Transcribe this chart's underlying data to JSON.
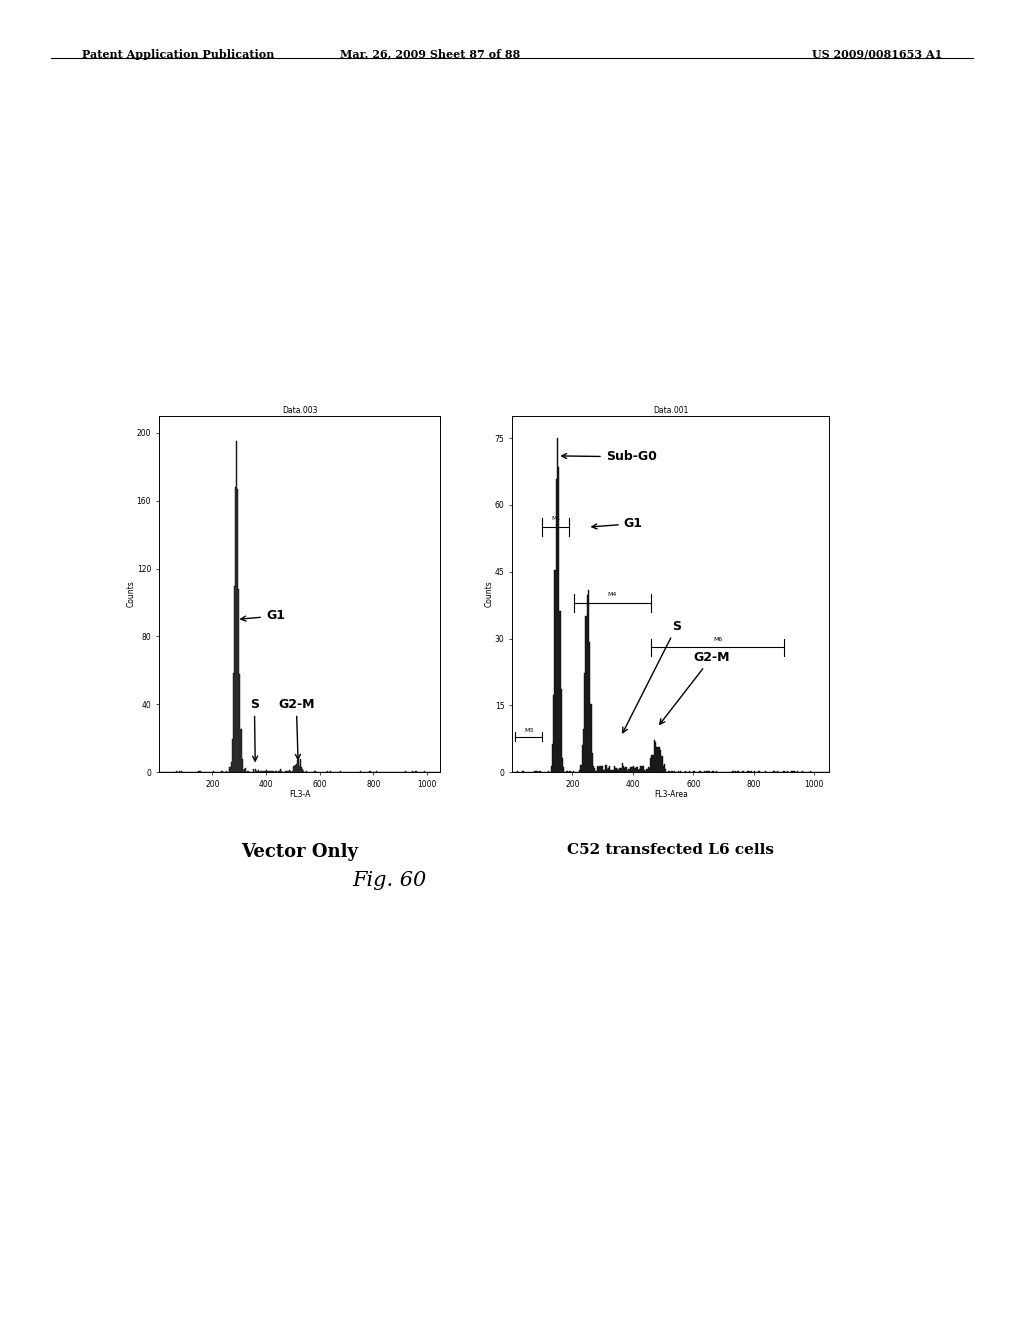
{
  "background_color": "#ffffff",
  "header_left": "Patent Application Publication",
  "header_mid": "Mar. 26, 2009 Sheet 87 of 88",
  "header_right": "US 2009/0081653 A1",
  "figure_label": "Fig. 60",
  "plot1": {
    "title": "Data.003",
    "xlabel": "FL3-A",
    "ylabel": "Counts",
    "yticks": [
      0,
      40,
      80,
      120,
      160,
      200
    ],
    "xticks": [
      200,
      400,
      600,
      800,
      1000
    ],
    "xlim": [
      0,
      1050
    ],
    "ylim": [
      0,
      210
    ],
    "caption": "Vector Only",
    "G1_peak_x": 290,
    "G1_peak_sigma": 8,
    "G1_n": 2000,
    "S_n": 60,
    "G2M_peak_x": 520,
    "G2M_peak_sigma": 12,
    "G2M_n": 100,
    "noise_n": 30,
    "peak_scale": 195
  },
  "plot2": {
    "title": "Data.001",
    "xlabel": "FL3-Area",
    "ylabel": "Counts",
    "yticks": [
      0,
      15,
      30,
      45,
      60,
      75
    ],
    "xticks": [
      200,
      400,
      600,
      800,
      1000
    ],
    "xlim": [
      0,
      1050
    ],
    "ylim": [
      0,
      80
    ],
    "caption": "C52 transfected L6 cells",
    "SubG0_peak_x": 150,
    "SubG0_peak_sigma": 7,
    "SubG0_n": 1800,
    "G1_peak_x": 250,
    "G1_peak_sigma": 8,
    "G1_n": 1100,
    "S_n": 200,
    "G2M_peak_x": 480,
    "G2M_peak_sigma": 14,
    "G2M_n": 300,
    "noise_n": 80,
    "peak_scale": 75,
    "M1_x1": 100,
    "M1_x2": 190,
    "M1_y": 55,
    "M2_x1": 205,
    "M2_x2": 460,
    "M2_y": 38,
    "M3_x1": 10,
    "M3_x2": 100,
    "M3_y": 8
  }
}
